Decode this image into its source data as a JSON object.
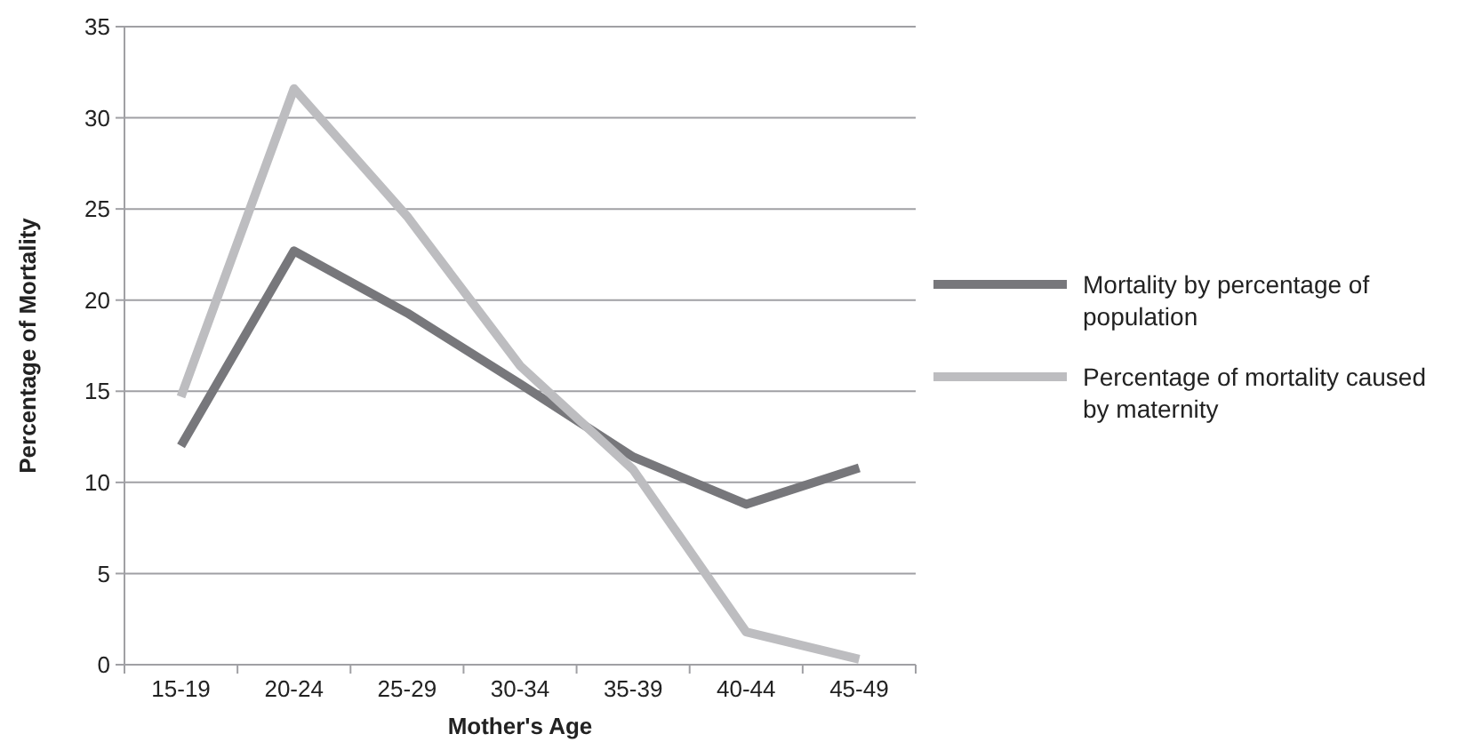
{
  "chart_data": {
    "type": "line",
    "xlabel": "Mother's Age",
    "ylabel": "Percentage of Mortality",
    "categories": [
      "15-19",
      "20-24",
      "25-29",
      "30-34",
      "35-39",
      "40-44",
      "45-49"
    ],
    "series": [
      {
        "name": "Mortality by percentage of population",
        "color": "#77777b",
        "values": [
          12,
          22.7,
          19.3,
          15.4,
          11.4,
          8.8,
          10.8
        ]
      },
      {
        "name": "Percentage of mortality caused by maternity",
        "color": "#bdbdc0",
        "values": [
          14.7,
          31.6,
          24.6,
          16.4,
          10.7,
          1.8,
          0.3
        ]
      }
    ],
    "ylim": [
      0,
      35
    ],
    "yticks": [
      0,
      5,
      10,
      15,
      20,
      25,
      30,
      35
    ],
    "grid": "y",
    "legend": "right",
    "line_style": "solid"
  }
}
